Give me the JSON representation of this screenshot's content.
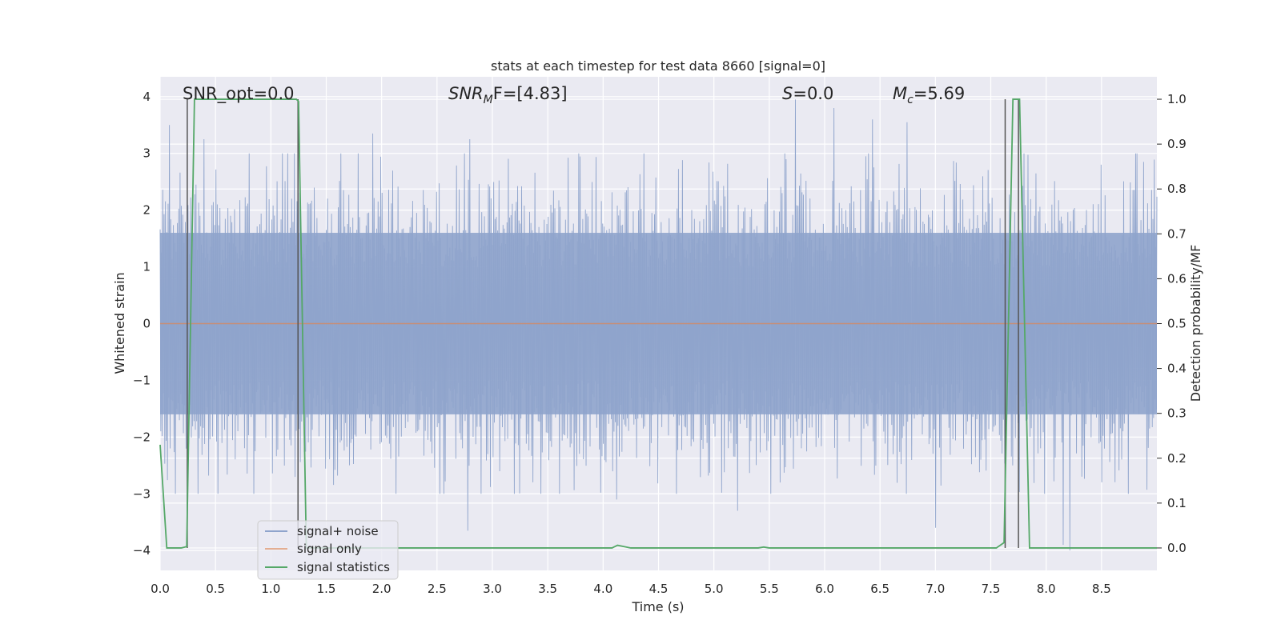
{
  "chart_data": {
    "type": "line",
    "title": "stats at each timestep for test data 8660 [signal=0]",
    "xlabel": "Time (s)",
    "ylabel": "Whitened strain",
    "y2label": "Detection probability/MF",
    "xlim": [
      0.0,
      9.0
    ],
    "ylim": [
      -4.35,
      4.35
    ],
    "y2lim": [
      -0.05,
      1.05
    ],
    "xticks": [
      "0.0",
      "0.5",
      "1.0",
      "1.5",
      "2.0",
      "2.5",
      "3.0",
      "3.5",
      "4.0",
      "4.5",
      "5.0",
      "5.5",
      "6.0",
      "6.5",
      "7.0",
      "7.5",
      "8.0",
      "8.5"
    ],
    "yticks": [
      "−4",
      "−3",
      "−2",
      "−1",
      "0",
      "1",
      "2",
      "3",
      "4"
    ],
    "y2ticks": [
      "0.0",
      "0.1",
      "0.2",
      "0.3",
      "0.4",
      "0.5",
      "0.6",
      "0.7",
      "0.8",
      "0.9",
      "1.0"
    ],
    "grid": true,
    "annotations": [
      {
        "text": "SNR_opt=0.0"
      },
      {
        "text": "SNR_MF=[4.83]",
        "symbol": "SNR",
        "sub": "M",
        "tail": "F=[4.83]"
      },
      {
        "text": "S=0.0",
        "symbol": "S",
        "tail": "=0.0"
      },
      {
        "text": "M_c=5.69",
        "symbol": "M",
        "sub": "c",
        "tail": "=5.69"
      }
    ],
    "legend": {
      "placement": "lower-left",
      "entries": [
        "signal+ noise",
        "signal only",
        "signal statistics"
      ]
    },
    "series": [
      {
        "name": "signal+ noise",
        "color": "#8fa4cc",
        "kind": "noise",
        "x_range": [
          0.0,
          9.0
        ],
        "sample_count": 1500,
        "envelope": [
          -1.6,
          1.6
        ],
        "peaks": [
          {
            "x": 0.08,
            "y": 3.5
          },
          {
            "x": 0.4,
            "y": 3.25
          },
          {
            "x": 1.92,
            "y": 3.35
          },
          {
            "x": 2.8,
            "y": 3.25
          },
          {
            "x": 5.73,
            "y": 3.95
          },
          {
            "x": 6.08,
            "y": 3.8
          },
          {
            "x": 6.43,
            "y": 3.6
          },
          {
            "x": 6.75,
            "y": 3.55
          },
          {
            "x": 8.5,
            "y": 2.8
          },
          {
            "x": 8.88,
            "y": 2.85
          },
          {
            "x": 2.78,
            "y": -3.65
          },
          {
            "x": 4.12,
            "y": -3.1
          },
          {
            "x": 5.22,
            "y": -3.3
          },
          {
            "x": 7.0,
            "y": -3.6
          },
          {
            "x": 8.22,
            "y": -4.0
          },
          {
            "x": 8.15,
            "y": -3.9
          }
        ]
      },
      {
        "name": "signal only",
        "color": "#dd8452",
        "x": [
          0.0,
          9.0
        ],
        "y": [
          0.0,
          0.0
        ]
      },
      {
        "name": "signal statistics",
        "color": "#55a868",
        "axis": "right",
        "x": [
          0.0,
          0.06,
          0.19,
          0.24,
          0.31,
          1.23,
          1.25,
          1.32,
          4.08,
          4.13,
          4.25,
          5.4,
          5.45,
          5.5,
          7.55,
          7.62,
          7.7,
          7.76,
          7.85,
          7.92,
          9.0
        ],
        "y": [
          0.23,
          0.0,
          0.0,
          0.003,
          1.0,
          1.0,
          0.995,
          0.0,
          0.0,
          0.006,
          0.0,
          0.0,
          0.002,
          0.0,
          0.0,
          0.012,
          1.0,
          1.0,
          0.0,
          0.0,
          0.0
        ]
      }
    ],
    "vlines": [
      0.245,
      1.245,
      7.63,
      7.75
    ],
    "vline_color": "#555555"
  }
}
